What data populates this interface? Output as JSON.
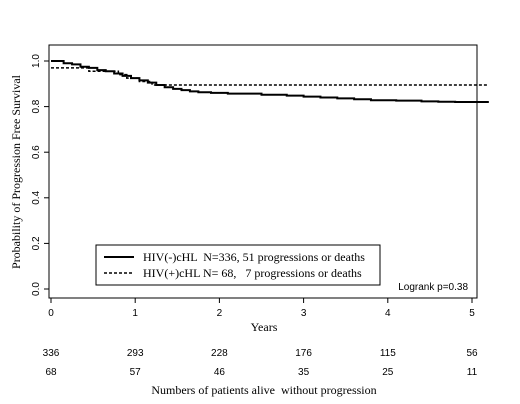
{
  "chart_data": {
    "type": "line",
    "title": "",
    "xlabel": "Years",
    "ylabel": "Probability  of Progression Free Survival",
    "xlim": [
      0,
      5.2
    ],
    "ylim": [
      0,
      1.0
    ],
    "x_ticks": [
      0,
      1,
      2,
      3,
      4,
      5
    ],
    "x_tick_labels": [
      "0",
      "1",
      "2",
      "3",
      "4",
      "5"
    ],
    "y_ticks": [
      0,
      0.2,
      0.4,
      0.6,
      0.8,
      1.0
    ],
    "y_tick_labels": [
      "0.0",
      "0.2",
      "0.4",
      "0.6",
      "0.8",
      "1.0"
    ],
    "grid": false,
    "legend_position": "bottom-left",
    "annotation": "Logrank p=0.38",
    "series": [
      {
        "name": "HIV(-)cHL  N=336, 51 progressions or deaths",
        "style": "solid",
        "color": "#000000",
        "x": [
          0,
          0.15,
          0.25,
          0.35,
          0.45,
          0.55,
          0.65,
          0.75,
          0.85,
          0.95,
          1.05,
          1.15,
          1.25,
          1.35,
          1.45,
          1.55,
          1.65,
          1.75,
          1.9,
          2.1,
          2.5,
          2.8,
          3.0,
          3.2,
          3.4,
          3.6,
          3.8,
          4.1,
          4.4,
          4.6,
          4.8,
          5.2
        ],
        "y": [
          1.0,
          0.99,
          0.985,
          0.975,
          0.97,
          0.96,
          0.955,
          0.945,
          0.935,
          0.925,
          0.915,
          0.905,
          0.895,
          0.885,
          0.878,
          0.872,
          0.867,
          0.863,
          0.86,
          0.857,
          0.852,
          0.848,
          0.844,
          0.84,
          0.836,
          0.832,
          0.828,
          0.826,
          0.823,
          0.821,
          0.82,
          0.82
        ]
      },
      {
        "name": "HIV(+)cHL N= 68,   7 progressions or deaths",
        "style": "dashed",
        "color": "#000000",
        "x": [
          0,
          0.45,
          0.8,
          0.9,
          1.05,
          1.2,
          5.2
        ],
        "y": [
          0.97,
          0.955,
          0.94,
          0.925,
          0.91,
          0.895,
          0.895
        ]
      }
    ],
    "risk_table": {
      "caption": "Numbers of patients alive  without progression",
      "rows": [
        {
          "name": "HIV(-)cHL",
          "values": [
            "336",
            "293",
            "228",
            "176",
            "115",
            "56"
          ]
        },
        {
          "name": "HIV(+)cHL",
          "values": [
            "68",
            "57",
            "46",
            "35",
            "25",
            "11"
          ]
        }
      ]
    }
  }
}
